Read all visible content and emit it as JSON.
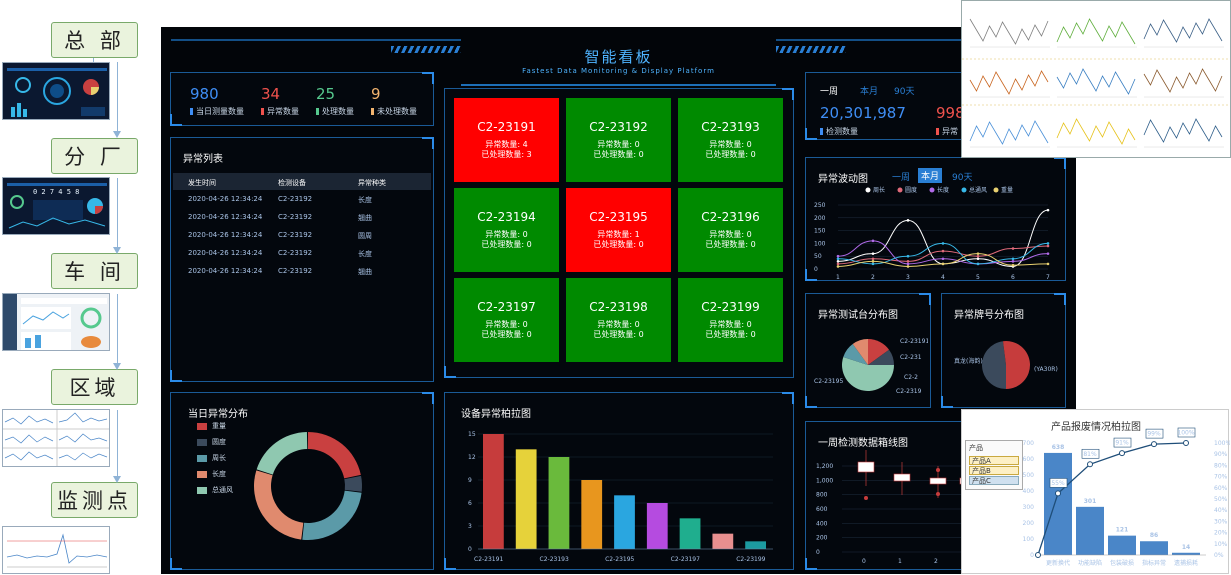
{
  "hierarchy": [
    "总 部",
    "分 厂",
    "车 间",
    "区域",
    "监测点"
  ],
  "dashboard": {
    "title": "智能看板",
    "subtitle": "Fastest Data Monitoring & Display Platform",
    "stats": [
      {
        "value": "980",
        "label": "当日测量数量",
        "color": "#3f8ef5"
      },
      {
        "value": "34",
        "label": "异常数量",
        "color": "#f0524d"
      },
      {
        "value": "25",
        "label": "处理数量",
        "color": "#56c98e"
      },
      {
        "value": "9",
        "label": "未处理数量",
        "color": "#f2b46f"
      }
    ],
    "anomaly_list": {
      "title": "异常列表",
      "headers": [
        "发生时间",
        "检测设备",
        "异常种类"
      ],
      "rows": [
        [
          "2020-04-26 12:34:24",
          "C2-23192",
          "长度"
        ],
        [
          "2020-04-26 12:34:24",
          "C2-23192",
          "翘曲"
        ],
        [
          "2020-04-26 12:34:24",
          "C2-23192",
          "圆周"
        ],
        [
          "2020-04-26 12:34:24",
          "C2-23192",
          "长度"
        ],
        [
          "2020-04-26 12:34:24",
          "C2-23192",
          "翘曲"
        ]
      ]
    },
    "devices": [
      {
        "name": "C2-23191",
        "abnormal": "异常数量: 4",
        "handled": "已处理数量: 3",
        "status": "alarm"
      },
      {
        "name": "C2-23192",
        "abnormal": "异常数量: 0",
        "handled": "已处理数量: 0",
        "status": "ok"
      },
      {
        "name": "C2-23193",
        "abnormal": "异常数量: 0",
        "handled": "已处理数量: 0",
        "status": "ok"
      },
      {
        "name": "C2-23194",
        "abnormal": "异常数量: 0",
        "handled": "已处理数量: 0",
        "status": "ok"
      },
      {
        "name": "C2-23195",
        "abnormal": "异常数量: 1",
        "handled": "已处理数量: 0",
        "status": "alarm"
      },
      {
        "name": "C2-23196",
        "abnormal": "异常数量: 0",
        "handled": "已处理数量: 0",
        "status": "ok"
      },
      {
        "name": "C2-23197",
        "abnormal": "异常数量: 0",
        "handled": "已处理数量: 0",
        "status": "ok"
      },
      {
        "name": "C2-23198",
        "abnormal": "异常数量: 0",
        "handled": "已处理数量: 0",
        "status": "ok"
      },
      {
        "name": "C2-23199",
        "abnormal": "异常数量: 0",
        "handled": "已处理数量: 0",
        "status": "ok"
      }
    ],
    "status_colors": {
      "alarm": "#ff0000",
      "ok": "#008a00"
    },
    "week_panel": {
      "tabs": [
        "一周",
        "本月",
        "90天"
      ],
      "count": "20,301,987",
      "count_label": "检测数量",
      "partial_value": "998",
      "partial_label": "异常"
    },
    "fluctuation": {
      "title": "异常波动图",
      "tabs": [
        "一周",
        "本月",
        "90天"
      ],
      "active_tab": "本月"
    },
    "test_station": {
      "title": "异常测试台分布图"
    },
    "brand": {
      "title": "异常牌号分布图"
    },
    "daily_dist": {
      "title": "当日异常分布"
    },
    "pareto_dark": {
      "title": "设备异常柏拉图"
    },
    "boxplot": {
      "title": "一周检测数据箱线图"
    }
  },
  "chart_data": [
    {
      "type": "pie",
      "chart": "当日异常分布",
      "categories": [
        "重量",
        "圆度",
        "周长",
        "长度",
        "总通风"
      ],
      "values": [
        22,
        5,
        25,
        28,
        20
      ],
      "colors": [
        "#c94040",
        "#3b4a5c",
        "#5b9aa8",
        "#e08a6e",
        "#8fc8b0"
      ]
    },
    {
      "type": "bar",
      "chart": "设备异常柏拉图",
      "categories": [
        "C2-23191",
        "C2-23192",
        "C2-23193",
        "C2-23194",
        "C2-23195",
        "C2-23196",
        "C2-23197",
        "C2-23198",
        "C2-23199"
      ],
      "tick_labels": [
        "C2-23191",
        "",
        "C2-23193",
        "",
        "C2-23195",
        "",
        "C2-23197",
        "",
        "C2-23199"
      ],
      "values": [
        15,
        13,
        12,
        9,
        7,
        6,
        4,
        2,
        1
      ],
      "colors": [
        "#c63c3c",
        "#e6d23a",
        "#6aba3c",
        "#e8961e",
        "#2aa6e0",
        "#b54be0",
        "#1fae8e",
        "#e88f8f",
        "#1c9aa0"
      ],
      "yticks": [
        0,
        3,
        6,
        9,
        12,
        15
      ],
      "ylim": [
        0,
        15
      ]
    },
    {
      "type": "line",
      "chart": "异常波动图",
      "series": [
        {
          "name": "周长",
          "values": [
            30,
            60,
            190,
            20,
            40,
            10,
            230
          ],
          "color": "#ffffff"
        },
        {
          "name": "圆度",
          "values": [
            20,
            40,
            30,
            70,
            50,
            80,
            90
          ],
          "color": "#e06a7a"
        },
        {
          "name": "长度",
          "values": [
            50,
            110,
            20,
            40,
            20,
            30,
            60
          ],
          "color": "#b06ae8"
        },
        {
          "name": "总通风",
          "values": [
            40,
            20,
            50,
            100,
            20,
            40,
            100
          ],
          "color": "#37b8e8"
        },
        {
          "name": "重量",
          "values": [
            10,
            30,
            10,
            20,
            60,
            15,
            20
          ],
          "color": "#e8d070"
        }
      ],
      "x": [
        1,
        2,
        3,
        4,
        5,
        6,
        7
      ],
      "yticks": [
        0,
        50,
        100,
        150,
        200,
        250
      ],
      "ylim": [
        0,
        250
      ]
    },
    {
      "type": "pie",
      "chart": "异常测试台分布图",
      "labels": [
        "C2-23191",
        "C2-231",
        "C2-23195",
        "C2-2",
        "C2-2319"
      ],
      "values": [
        15,
        10,
        55,
        10,
        10
      ],
      "colors": [
        "#c94040",
        "#3b4a5c",
        "#8fc8b0",
        "#5b9aa8",
        "#e08a6e"
      ]
    },
    {
      "type": "pie",
      "chart": "异常牌号分布图",
      "labels": [
        "真龙(海韵)",
        "(YA30R)"
      ],
      "values": [
        48,
        52
      ],
      "colors": [
        "#3b4a5c",
        "#c63c3c"
      ]
    },
    {
      "type": "bar",
      "chart": "产品报废情况柏拉图",
      "title": "产品报废情况柏拉图",
      "categories": [
        "更新换代",
        "功能缺陷",
        "包装破损",
        "指标异常",
        "遗捕损耗"
      ],
      "values": [
        638,
        301,
        121,
        86,
        14
      ],
      "cumulative_pct": [
        "55%",
        "81%",
        "91%",
        "99%",
        "100%"
      ],
      "cumulative_values": [
        55,
        81,
        91,
        99,
        100
      ],
      "yticks": [
        0,
        100,
        200,
        300,
        400,
        500,
        600,
        700
      ],
      "y2ticks": [
        "0%",
        "10%",
        "20%",
        "30%",
        "40%",
        "50%",
        "60%",
        "70%",
        "80%",
        "90%",
        "100%"
      ],
      "slicer": {
        "title": "产品",
        "items": [
          "产品A",
          "产品B",
          "产品C"
        ]
      }
    },
    {
      "type": "scatter",
      "chart": "一周检测数据箱线图",
      "yticks": [
        0,
        200,
        400,
        600,
        800,
        "1,000",
        "1,200"
      ],
      "xticks": [
        0,
        1,
        2
      ]
    }
  ]
}
